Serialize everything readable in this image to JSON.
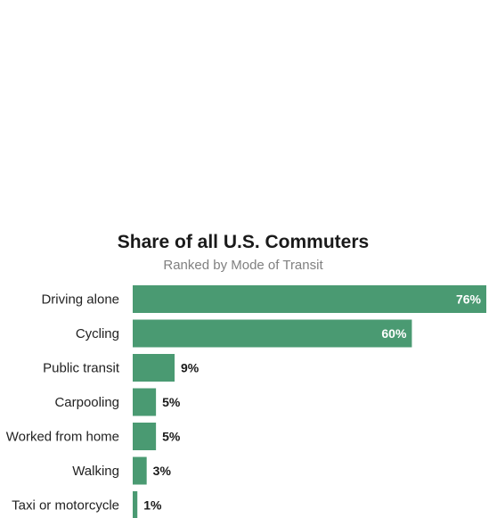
{
  "chart_data": {
    "type": "bar",
    "orientation": "horizontal",
    "title": "Share of all U.S. Commuters",
    "subtitle": "Ranked by Mode of Transit",
    "categories": [
      "Driving alone",
      "Cycling",
      "Public transit",
      "Carpooling",
      "Worked from home",
      "Walking",
      "Taxi or motorcycle"
    ],
    "values": [
      76,
      60,
      9,
      5,
      5,
      3,
      1
    ],
    "value_labels": [
      "76%",
      "60%",
      "9%",
      "5%",
      "5%",
      "3%",
      "1%"
    ],
    "unit": "%",
    "xlim": [
      0,
      76
    ],
    "grid": false,
    "legend": "none",
    "colors": {
      "bar": "#4a9a72"
    }
  }
}
